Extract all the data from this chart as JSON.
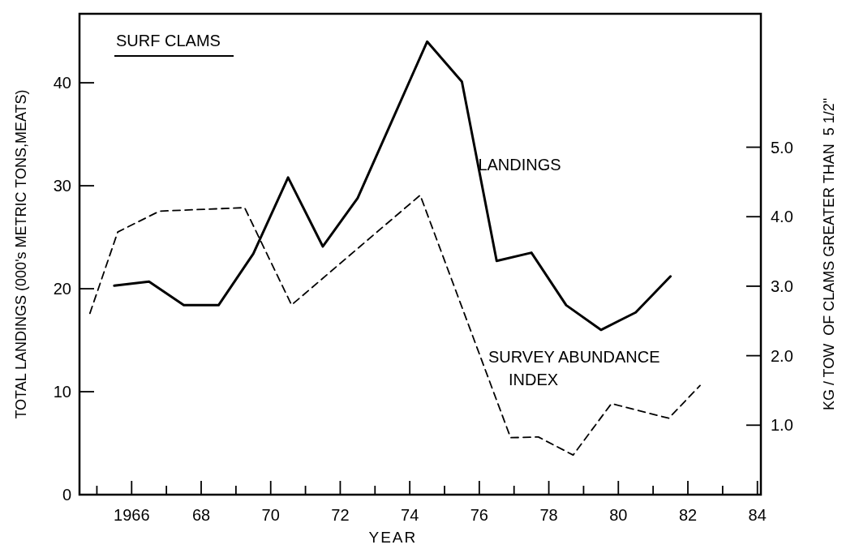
{
  "chart_data": {
    "type": "line",
    "title": "SURF CLAMS",
    "xlabel": "YEAR",
    "ylabel": "TOTAL LANDINGS (000's METRIC TONS,MEATS)",
    "y2label": "KG / TOW  OF CLAMS GREATER THAN  5 1/2\"",
    "xlim": [
      1964.5,
      1984.1
    ],
    "ylim": [
      0,
      46.7
    ],
    "y2lim": [
      0,
      6.92
    ],
    "xticks": [
      {
        "value": 1965,
        "label": null
      },
      1966,
      {
        "value": 1967,
        "label": null
      },
      {
        "value": 1968,
        "label": "68"
      },
      {
        "value": 1969,
        "label": null
      },
      {
        "value": 1970,
        "label": "70"
      },
      {
        "value": 1971,
        "label": null
      },
      {
        "value": 1972,
        "label": "72"
      },
      {
        "value": 1973,
        "label": null
      },
      {
        "value": 1974,
        "label": "74"
      },
      {
        "value": 1975,
        "label": null
      },
      {
        "value": 1976,
        "label": "76"
      },
      {
        "value": 1977,
        "label": null
      },
      {
        "value": 1978,
        "label": "78"
      },
      {
        "value": 1979,
        "label": null
      },
      {
        "value": 1980,
        "label": "80"
      },
      {
        "value": 1981,
        "label": null
      },
      {
        "value": 1982,
        "label": "82"
      },
      {
        "value": 1983,
        "label": null
      },
      {
        "value": 1984,
        "label": "84"
      }
    ],
    "yticks": [
      0,
      10,
      20,
      30,
      40
    ],
    "y2ticks": [
      {
        "value": 1,
        "label": "1.0"
      },
      {
        "value": 2,
        "label": "2.0"
      },
      {
        "value": 3,
        "label": "3.0"
      },
      {
        "value": 4,
        "label": "4.0"
      },
      {
        "value": 5,
        "label": "5.0"
      }
    ],
    "grid": false,
    "marker": "none",
    "series": [
      {
        "name": "LANDINGS",
        "color": "#000000",
        "line_style": "solid",
        "x": [
          1965.5,
          1966.5,
          1967.5,
          1968.5,
          1969.5,
          1970.5,
          1971.5,
          1972.5,
          1973.5,
          1974.5,
          1975.5,
          1976.5,
          1977.5,
          1978.5,
          1979.5,
          1980.5,
          1981.5
        ],
        "values": [
          20.3,
          20.7,
          18.4,
          18.4,
          23.4,
          30.8,
          24.1,
          28.8,
          36.4,
          44.0,
          40.1,
          22.7,
          23.5,
          18.4,
          16.0,
          17.7,
          21.2
        ]
      },
      {
        "name": "SURVEY ABUNDANCE INDEX",
        "color": "#000000",
        "line_style": "dashed",
        "axis": "y2",
        "x": [
          1964.8,
          1965.6,
          1966.8,
          1969.25,
          1970.6,
          1974.3,
          1976.9,
          1977.7,
          1978.7,
          1979.8,
          1981.45,
          1982.35
        ],
        "values": [
          2.61,
          3.78,
          4.08,
          4.13,
          2.73,
          4.31,
          0.82,
          0.83,
          0.57,
          1.31,
          1.1,
          1.57
        ]
      }
    ]
  }
}
